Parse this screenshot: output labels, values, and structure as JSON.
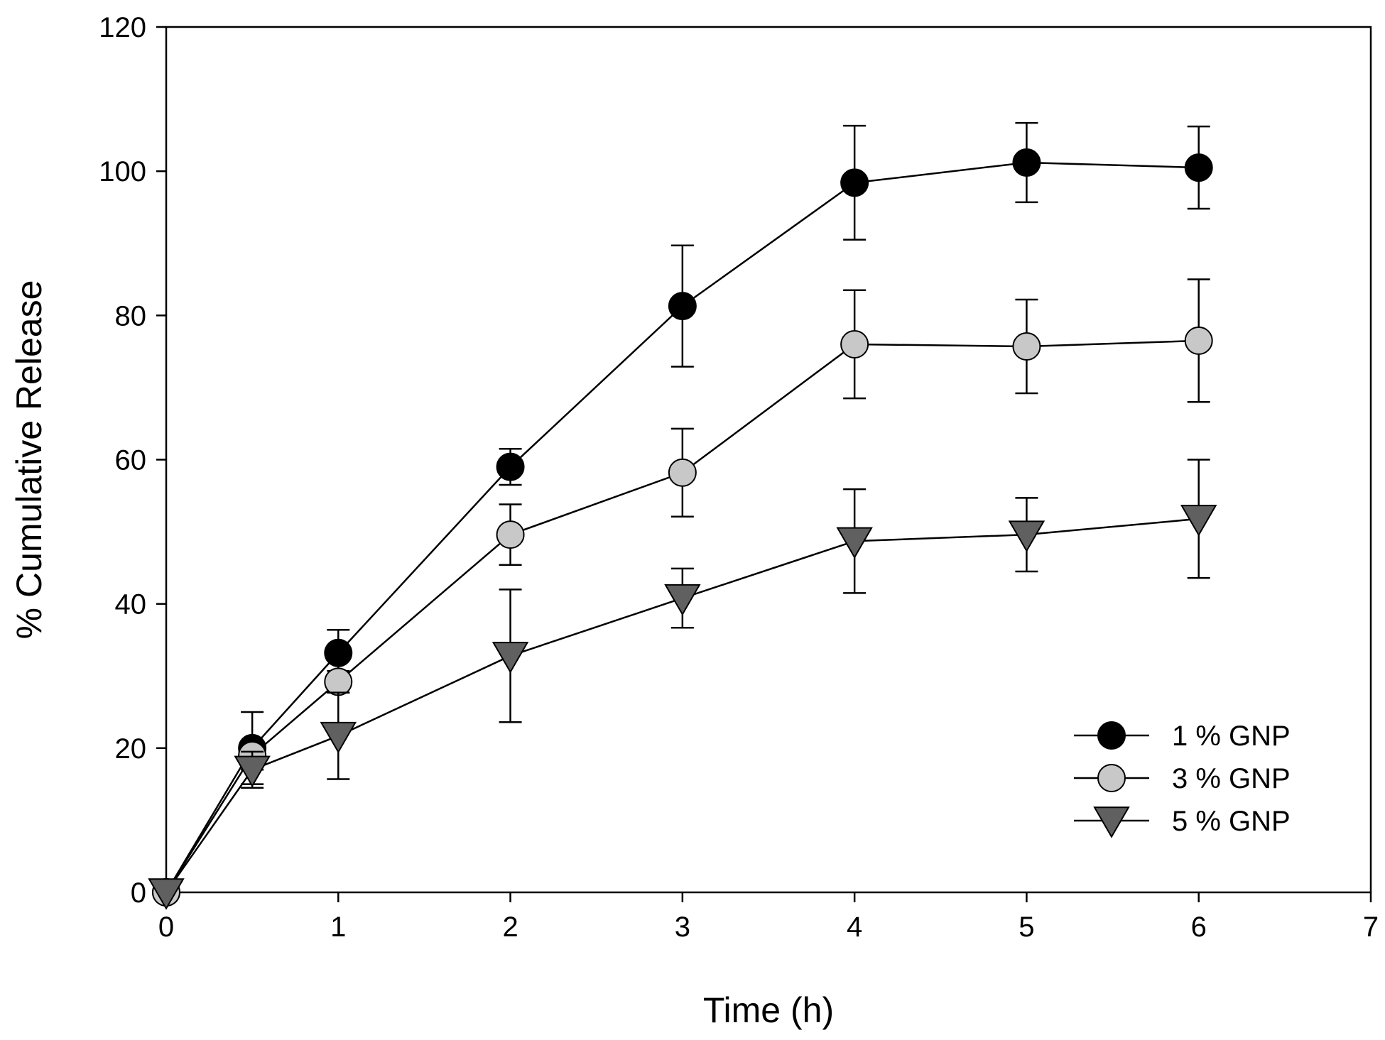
{
  "chart_data": {
    "type": "line",
    "title": "",
    "xlabel": "Time (h)",
    "ylabel": "% Cumulative Release",
    "xlim": [
      0,
      7
    ],
    "ylim": [
      0,
      120
    ],
    "xticks": [
      0,
      1,
      2,
      3,
      4,
      5,
      6,
      7
    ],
    "yticks": [
      0,
      20,
      40,
      60,
      80,
      100,
      120
    ],
    "grid": false,
    "legend_position": "bottom-right",
    "x": [
      0,
      0.5,
      1,
      2,
      3,
      4,
      5,
      6
    ],
    "series": [
      {
        "name": "1 % GNP",
        "marker": "circle",
        "color": "#000000",
        "values": [
          0,
          20,
          33.2,
          59,
          81.3,
          98.4,
          101.2,
          100.5
        ],
        "errors": [
          0,
          5,
          3.2,
          2.5,
          8.4,
          7.9,
          5.5,
          5.7
        ]
      },
      {
        "name": "3 % GNP",
        "marker": "circle",
        "color": "#c8c8c8",
        "values": [
          0,
          19,
          29.2,
          49.6,
          58.2,
          76,
          75.7,
          76.5
        ],
        "errors": [
          0,
          2,
          1.5,
          4.2,
          6.1,
          7.5,
          6.5,
          8.5
        ]
      },
      {
        "name": "5 % GNP",
        "marker": "triangle-down",
        "color": "#606060",
        "values": [
          0,
          17,
          21.7,
          32.8,
          40.8,
          48.7,
          49.6,
          51.8
        ],
        "errors": [
          0,
          2.5,
          6,
          9.2,
          4.1,
          7.2,
          5.1,
          8.2
        ]
      }
    ]
  }
}
